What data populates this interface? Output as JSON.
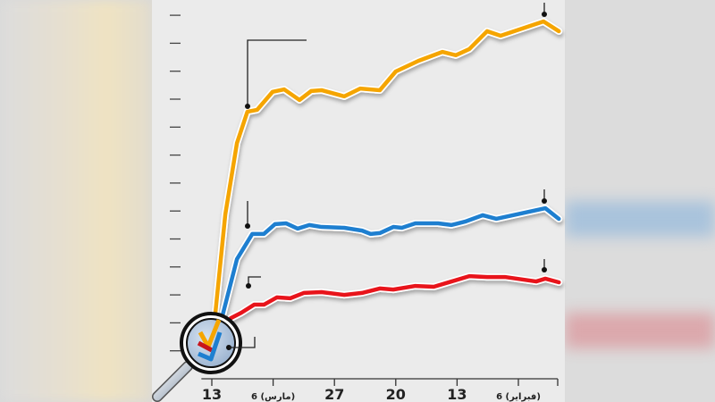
{
  "chart_data": {
    "type": "line",
    "title": "",
    "xlabel": "",
    "ylabel": "",
    "x_tick_labels": [
      "13",
      "6 (مارس)",
      "27",
      "20",
      "13",
      "6 (فبراير)"
    ],
    "x_tick_positions": [
      0,
      1,
      2,
      3,
      4,
      5
    ],
    "xlim": [
      -0.17,
      5.7
    ],
    "ylim": [
      0,
      13
    ],
    "y_ticks": [
      1,
      2,
      3,
      4,
      5,
      6,
      7,
      8,
      9,
      10,
      11,
      12,
      13
    ],
    "grid": false,
    "legend": "none",
    "series": [
      {
        "name": "orange",
        "color": "#f5a500",
        "x": [
          0,
          0.22,
          0.41,
          0.58,
          0.74,
          0.99,
          1.18,
          1.43,
          1.62,
          1.79,
          2.16,
          2.42,
          2.74,
          3.0,
          3.37,
          3.76,
          3.98,
          4.2,
          4.49,
          4.71,
          5.41,
          5.66
        ],
        "y": [
          1.09,
          5.88,
          8.43,
          9.55,
          9.62,
          10.26,
          10.35,
          9.97,
          10.29,
          10.32,
          10.1,
          10.38,
          10.32,
          10.99,
          11.37,
          11.69,
          11.57,
          11.79,
          12.43,
          12.27,
          12.78,
          12.43
        ]
      },
      {
        "name": "blue",
        "color": "#1e7fd0",
        "x": [
          0,
          0.41,
          0.66,
          0.85,
          1.03,
          1.21,
          1.4,
          1.59,
          1.79,
          2.16,
          2.45,
          2.59,
          2.74,
          2.96,
          3.1,
          3.32,
          3.69,
          3.91,
          4.13,
          4.42,
          4.64,
          5.44,
          5.66
        ],
        "y": [
          0.77,
          4.28,
          5.18,
          5.18,
          5.53,
          5.56,
          5.37,
          5.5,
          5.43,
          5.4,
          5.3,
          5.18,
          5.21,
          5.43,
          5.4,
          5.56,
          5.56,
          5.5,
          5.62,
          5.85,
          5.72,
          6.1,
          5.72
        ]
      },
      {
        "name": "red",
        "color": "#e8141b",
        "x": [
          0,
          0.31,
          0.48,
          0.69,
          0.85,
          1.06,
          1.28,
          1.5,
          1.79,
          2.16,
          2.45,
          2.74,
          2.96,
          3.32,
          3.62,
          3.91,
          4.2,
          4.49,
          4.78,
          5.29,
          5.44,
          5.66
        ],
        "y": [
          0.93,
          2.17,
          2.36,
          2.65,
          2.65,
          2.91,
          2.88,
          3.07,
          3.1,
          3.0,
          3.07,
          3.23,
          3.19,
          3.32,
          3.29,
          3.48,
          3.67,
          3.64,
          3.64,
          3.48,
          3.58,
          3.45
        ]
      }
    ]
  }
}
